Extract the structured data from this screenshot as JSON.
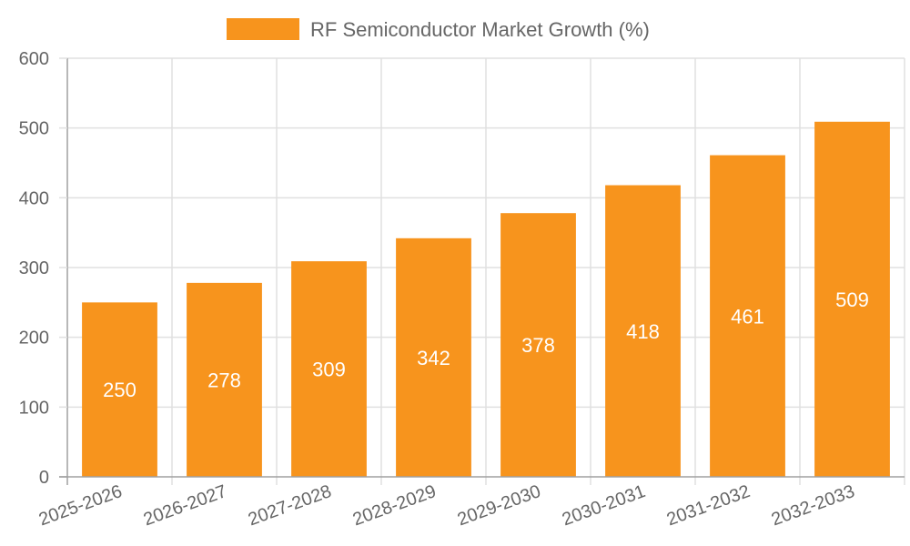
{
  "legend": {
    "label": "RF Semiconductor Market Growth (%)",
    "color": "#f7941d"
  },
  "colors": {
    "bar": "#f7941d",
    "grid": "#e0e0e0",
    "axis": "#a0a0a0",
    "tick_text": "#666666",
    "bar_label": "#ffffff"
  },
  "chart_data": {
    "type": "bar",
    "title": "",
    "xlabel": "",
    "ylabel": "",
    "categories": [
      "2025-2026",
      "2026-2027",
      "2027-2028",
      "2028-2029",
      "2029-2030",
      "2030-2031",
      "2031-2032",
      "2032-2033"
    ],
    "series": [
      {
        "name": "RF Semiconductor Market Growth (%)",
        "values": [
          250,
          278,
          309,
          342,
          378,
          418,
          461,
          509
        ]
      }
    ],
    "ylim": [
      0,
      600
    ],
    "yticks": [
      0,
      100,
      200,
      300,
      400,
      500,
      600
    ],
    "grid": true,
    "legend_position": "top",
    "data_labels": true
  }
}
